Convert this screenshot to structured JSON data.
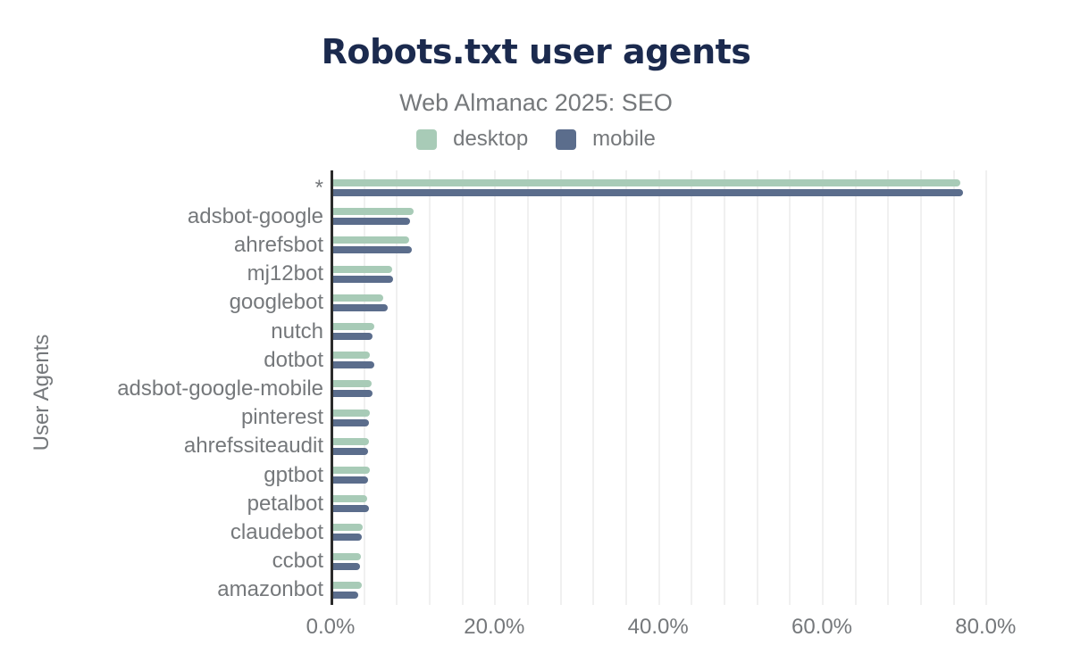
{
  "chart_data": {
    "type": "bar",
    "orientation": "horizontal",
    "title": "Robots.txt user agents",
    "subtitle": "Web Almanac 2025: SEO",
    "ylabel": "User Agents",
    "xlabel": "",
    "unit": "%",
    "xlim": [
      0,
      84
    ],
    "grid": "vertical minor gridlines every 4%, no bottom axis line",
    "legend_position": "top center",
    "categories": [
      "*",
      "adsbot-google",
      "ahrefsbot",
      "mj12bot",
      "googlebot",
      "nutch",
      "dotbot",
      "adsbot-google-mobile",
      "pinterest",
      "ahrefssiteaudit",
      "gptbot",
      "petalbot",
      "claudebot",
      "ccbot",
      "amazonbot"
    ],
    "series": [
      {
        "name": "desktop",
        "color": "#a8cbb7",
        "values": [
          76.6,
          9.8,
          9.3,
          7.2,
          6.1,
          5.0,
          4.5,
          4.7,
          4.5,
          4.4,
          4.5,
          4.1,
          3.6,
          3.4,
          3.5
        ]
      },
      {
        "name": "mobile",
        "color": "#5b6d8c",
        "values": [
          76.9,
          9.4,
          9.6,
          7.3,
          6.7,
          4.8,
          5.0,
          4.8,
          4.4,
          4.3,
          4.3,
          4.4,
          3.5,
          3.3,
          3.0
        ]
      }
    ],
    "x_ticks": [
      {
        "value": 0,
        "label": "0.0%"
      },
      {
        "value": 20,
        "label": "20.0%"
      },
      {
        "value": 40,
        "label": "40.0%"
      },
      {
        "value": 60,
        "label": "60.0%"
      },
      {
        "value": 80,
        "label": "80.0%"
      }
    ]
  },
  "colors": {
    "title": "#1b2a4e",
    "text": "#75787b",
    "axis": "#2b2b2b",
    "gridline": "#f0f0f0",
    "background": "#ffffff"
  }
}
